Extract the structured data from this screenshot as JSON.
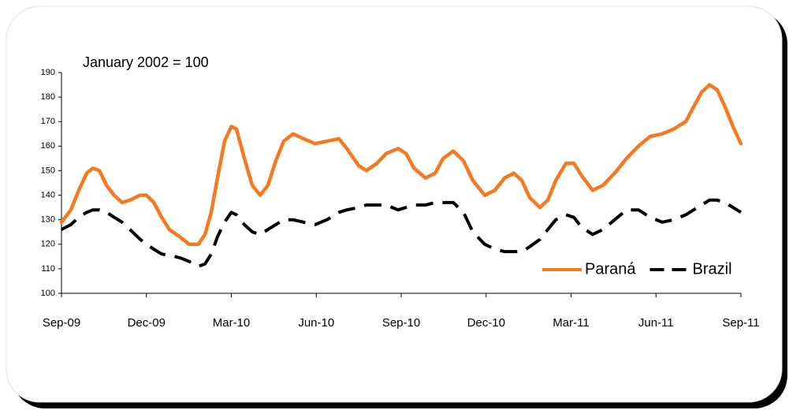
{
  "chart_data": {
    "type": "line",
    "annotation": "January 2002 = 100",
    "x": [
      0,
      0.33,
      0.61,
      0.89,
      1.11,
      1.34,
      1.59,
      1.86,
      2.14,
      2.42,
      2.78,
      3,
      3.26,
      3.54,
      3.81,
      4.18,
      4.51,
      4.84,
      5.07,
      5.29,
      5.51,
      5.76,
      6,
      6.18,
      6.46,
      6.74,
      7.02,
      7.29,
      7.57,
      7.85,
      8.18,
      8.55,
      8.96,
      9.38,
      9.8,
      10.08,
      10.5,
      10.77,
      11.14,
      11.47,
      11.89,
      12.17,
      12.45,
      12.86,
      13.2,
      13.48,
      13.84,
      14.2,
      14.53,
      14.95,
      15.31,
      15.65,
      15.98,
      16.26,
      16.54,
      16.9,
      17.18,
      17.46,
      17.82,
      18.1,
      18.37,
      18.76,
      19.13,
      19.54,
      19.96,
      20.38,
      20.8,
      21.22,
      21.63,
      22.05,
      22.33,
      22.61,
      22.89,
      23.16,
      23.44,
      23.72,
      24
    ],
    "series": [
      {
        "name": "Paraná",
        "color": "#f47920",
        "dashed": false,
        "values": [
          129,
          134,
          142,
          149,
          151,
          150,
          144,
          140,
          137,
          138,
          140,
          140,
          137,
          131,
          126,
          123,
          120,
          120,
          124,
          133,
          147,
          162,
          168,
          167,
          155,
          144,
          140,
          144,
          154,
          162,
          165,
          163,
          161,
          162,
          163,
          159,
          152,
          150,
          153,
          157,
          159,
          157,
          151,
          147,
          149,
          155,
          158,
          154,
          146,
          140,
          142,
          147,
          149,
          146,
          139,
          135,
          138,
          146,
          153,
          153,
          148,
          142,
          144,
          149,
          155,
          160,
          164,
          165,
          167,
          170,
          176,
          182,
          185,
          183,
          176,
          168,
          161
        ]
      },
      {
        "name": "Brazil",
        "color": "#000000",
        "dashed": true,
        "values": [
          126,
          128,
          131,
          133,
          134,
          134,
          133,
          131,
          129,
          126,
          122,
          120,
          118,
          116,
          115.5,
          114.5,
          113,
          111,
          112,
          116,
          123,
          129,
          133,
          132,
          128,
          125,
          124,
          126,
          128,
          130,
          130,
          129,
          128,
          130,
          133,
          134,
          135,
          136,
          136,
          136,
          134,
          135,
          136,
          136,
          137,
          137,
          137,
          133,
          125,
          120,
          118,
          117,
          117,
          117,
          119,
          122,
          126,
          130,
          132,
          131,
          127,
          124,
          126,
          130,
          134,
          134,
          131,
          129,
          130,
          132,
          134,
          136,
          138,
          138,
          137,
          135,
          133
        ]
      }
    ],
    "xlim": [
      0,
      24
    ],
    "xticks": [
      {
        "value": 0,
        "label": "Sep-09"
      },
      {
        "value": 3,
        "label": "Dec-09"
      },
      {
        "value": 6,
        "label": "Mar-10"
      },
      {
        "value": 9,
        "label": "Jun-10"
      },
      {
        "value": 12,
        "label": "Sep-10"
      },
      {
        "value": 15,
        "label": "Dec-10"
      },
      {
        "value": 18,
        "label": "Mar-11"
      },
      {
        "value": 21,
        "label": "Jun-11"
      },
      {
        "value": 24,
        "label": "Sep-11"
      }
    ],
    "ylim": [
      100,
      190
    ],
    "yticks": [
      100,
      110,
      120,
      130,
      140,
      150,
      160,
      170,
      180,
      190
    ],
    "grid": false,
    "legend": "lower right"
  }
}
